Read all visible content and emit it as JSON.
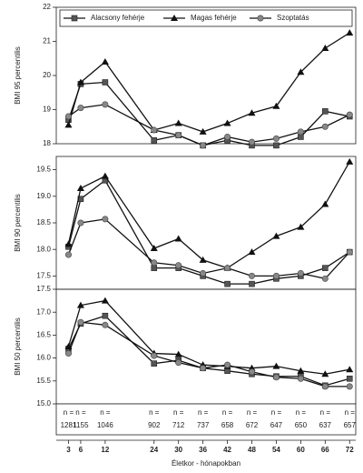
{
  "chart_data": [
    {
      "type": "line",
      "ylabel": "BMI 95 percentilis",
      "ylim": [
        18,
        22
      ],
      "yticks": [
        18,
        19,
        20,
        21,
        22
      ],
      "x": [
        3,
        6,
        12,
        24,
        30,
        36,
        42,
        48,
        54,
        60,
        66,
        72
      ],
      "xlim": [
        0,
        73.5
      ],
      "legend": "top",
      "series": [
        {
          "name": "Alacsony fehérje",
          "marker": "square",
          "color": "#555555",
          "values": [
            18.7,
            19.75,
            19.8,
            18.1,
            18.25,
            17.95,
            18.1,
            17.95,
            17.95,
            18.2,
            18.95,
            18.8
          ]
        },
        {
          "name": "Magas fehérje",
          "marker": "triangle",
          "color": "#111111",
          "values": [
            18.55,
            19.8,
            20.4,
            18.4,
            18.6,
            18.35,
            18.6,
            18.9,
            19.1,
            20.1,
            20.8,
            21.25
          ]
        },
        {
          "name": "Szoptatás",
          "marker": "circle",
          "color": "#888888",
          "values": [
            18.8,
            19.05,
            19.15,
            18.4,
            18.25,
            17.95,
            18.2,
            18.05,
            18.15,
            18.35,
            18.5,
            18.85
          ]
        }
      ]
    },
    {
      "type": "line",
      "ylabel": "BMI 90 percentilis",
      "ylim": [
        17.25,
        19.75
      ],
      "yticks": [
        17.5,
        {
          "value": 18,
          "label": "18.0"
        },
        18.5,
        {
          "value": 19,
          "label": "19.0"
        },
        19.5
      ],
      "x": [
        3,
        6,
        12,
        24,
        30,
        36,
        42,
        48,
        54,
        60,
        66,
        72
      ],
      "xlim": [
        0,
        73.5
      ],
      "series": [
        {
          "marker": "square",
          "color": "#555555",
          "values": [
            18.05,
            18.95,
            19.3,
            17.65,
            17.65,
            17.5,
            17.35,
            17.35,
            17.45,
            17.5,
            17.65,
            17.95
          ]
        },
        {
          "marker": "triangle",
          "color": "#111111",
          "values": [
            18.1,
            19.15,
            19.38,
            18.02,
            18.2,
            17.8,
            17.65,
            17.95,
            18.25,
            18.42,
            18.85,
            19.65
          ]
        },
        {
          "marker": "circle",
          "color": "#888888",
          "values": [
            17.9,
            18.5,
            18.57,
            17.75,
            17.7,
            17.55,
            17.65,
            17.5,
            17.5,
            17.55,
            17.45,
            17.95
          ]
        }
      ]
    },
    {
      "type": "line",
      "ylabel": "BMI 50 percentilis",
      "ylim": [
        15,
        17.5
      ],
      "yticks": [
        {
          "value": 15,
          "label": "15.0"
        },
        15.5,
        {
          "value": 16,
          "label": "16.0"
        },
        16.5,
        {
          "value": 17,
          "label": "17.0"
        },
        17.5
      ],
      "x": [
        3,
        6,
        12,
        24,
        30,
        36,
        42,
        48,
        54,
        60,
        66,
        72
      ],
      "xlim": [
        0,
        73.5
      ],
      "xticks": [
        3,
        6,
        12,
        24,
        30,
        36,
        42,
        48,
        54,
        60,
        66,
        72
      ],
      "xlabel": "Életkor - hónapokban",
      "n_label": "n =",
      "n_values": [
        1281,
        1155,
        1046,
        902,
        712,
        737,
        658,
        672,
        647,
        650,
        637,
        657
      ],
      "series": [
        {
          "marker": "square",
          "color": "#555555",
          "values": [
            16.2,
            16.75,
            16.92,
            15.88,
            15.95,
            15.78,
            15.72,
            15.65,
            15.6,
            15.6,
            15.4,
            15.55
          ]
        },
        {
          "marker": "triangle",
          "color": "#111111",
          "values": [
            16.25,
            17.15,
            17.25,
            16.1,
            16.08,
            15.85,
            15.82,
            15.78,
            15.82,
            15.72,
            15.65,
            15.75
          ]
        },
        {
          "marker": "circle",
          "color": "#888888",
          "values": [
            16.1,
            16.78,
            16.72,
            16.05,
            15.9,
            15.78,
            15.85,
            15.7,
            15.58,
            15.55,
            15.38,
            15.38
          ]
        }
      ]
    }
  ]
}
